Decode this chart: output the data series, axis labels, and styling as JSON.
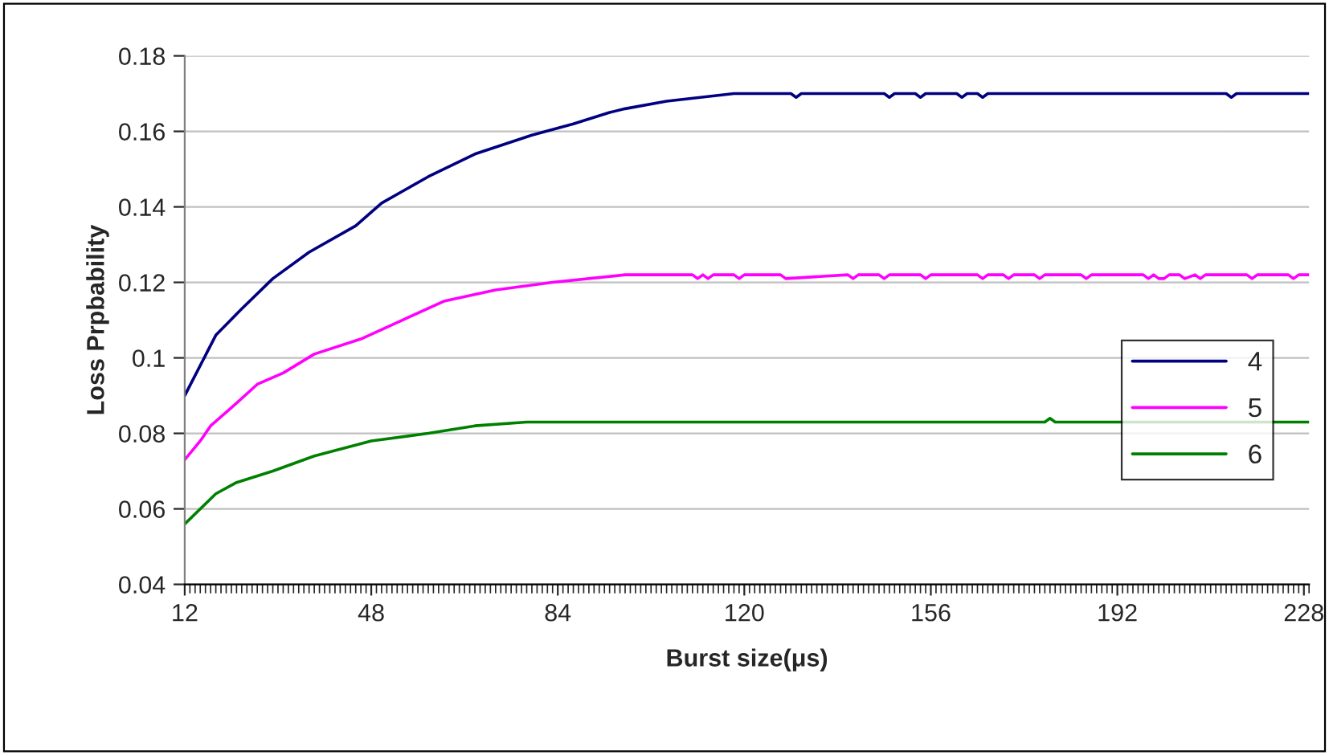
{
  "chart_data": {
    "type": "line",
    "xlabel": "Burst size(μs)",
    "ylabel": "Loss Prpbability",
    "xlim": [
      12,
      229
    ],
    "xticks": [
      12,
      48,
      84,
      120,
      156,
      192,
      228
    ],
    "ylim": [
      0.04,
      0.18
    ],
    "yticks": [
      0.04,
      0.06,
      0.08,
      0.1,
      0.12,
      0.14,
      0.16,
      0.18
    ],
    "grid": "y",
    "legend": "right",
    "marker": "none",
    "line_style": "solid",
    "series": [
      {
        "name": "4",
        "color": "#000080",
        "x": [
          12,
          18,
          23,
          29,
          36,
          45,
          50,
          59,
          68,
          79,
          87,
          94,
          97,
          105,
          118,
          129,
          130,
          131,
          147,
          148,
          149,
          153,
          154,
          155,
          161,
          162,
          163,
          165,
          166,
          167,
          213,
          214,
          215,
          229
        ],
        "values": [
          0.09,
          0.106,
          0.113,
          0.121,
          0.128,
          0.135,
          0.141,
          0.148,
          0.154,
          0.159,
          0.162,
          0.165,
          0.166,
          0.168,
          0.17,
          0.17,
          0.169,
          0.17,
          0.17,
          0.169,
          0.17,
          0.17,
          0.169,
          0.17,
          0.17,
          0.169,
          0.17,
          0.17,
          0.169,
          0.17,
          0.17,
          0.169,
          0.17,
          0.17
        ]
      },
      {
        "name": "5",
        "color": "#ff00ff",
        "x": [
          12,
          15,
          17,
          22,
          26,
          31,
          37,
          46,
          54,
          62,
          72,
          83,
          97,
          110,
          111,
          112,
          113,
          114,
          118,
          119,
          120,
          127,
          128,
          140,
          141,
          142,
          146,
          147,
          148,
          154,
          155,
          156,
          165,
          166,
          167,
          170,
          171,
          172,
          176,
          177,
          178,
          185,
          186,
          187,
          197,
          198,
          199,
          200,
          201,
          202,
          204,
          205,
          207,
          208,
          209,
          217,
          218,
          219,
          225,
          226,
          227,
          229
        ],
        "values": [
          0.073,
          0.078,
          0.082,
          0.088,
          0.093,
          0.096,
          0.101,
          0.105,
          0.11,
          0.115,
          0.118,
          0.12,
          0.122,
          0.122,
          0.121,
          0.122,
          0.121,
          0.122,
          0.122,
          0.121,
          0.122,
          0.122,
          0.121,
          0.122,
          0.121,
          0.122,
          0.122,
          0.121,
          0.122,
          0.122,
          0.121,
          0.122,
          0.122,
          0.121,
          0.122,
          0.122,
          0.121,
          0.122,
          0.122,
          0.121,
          0.122,
          0.122,
          0.121,
          0.122,
          0.122,
          0.121,
          0.122,
          0.121,
          0.121,
          0.122,
          0.122,
          0.121,
          0.122,
          0.121,
          0.122,
          0.122,
          0.121,
          0.122,
          0.122,
          0.121,
          0.122,
          0.122
        ]
      },
      {
        "name": "6",
        "color": "#008000",
        "x": [
          12,
          18,
          22,
          29,
          37,
          48,
          59,
          68,
          78,
          178,
          179,
          180,
          229
        ],
        "values": [
          0.056,
          0.064,
          0.067,
          0.07,
          0.074,
          0.078,
          0.08,
          0.082,
          0.083,
          0.083,
          0.084,
          0.083,
          0.083
        ]
      }
    ]
  }
}
